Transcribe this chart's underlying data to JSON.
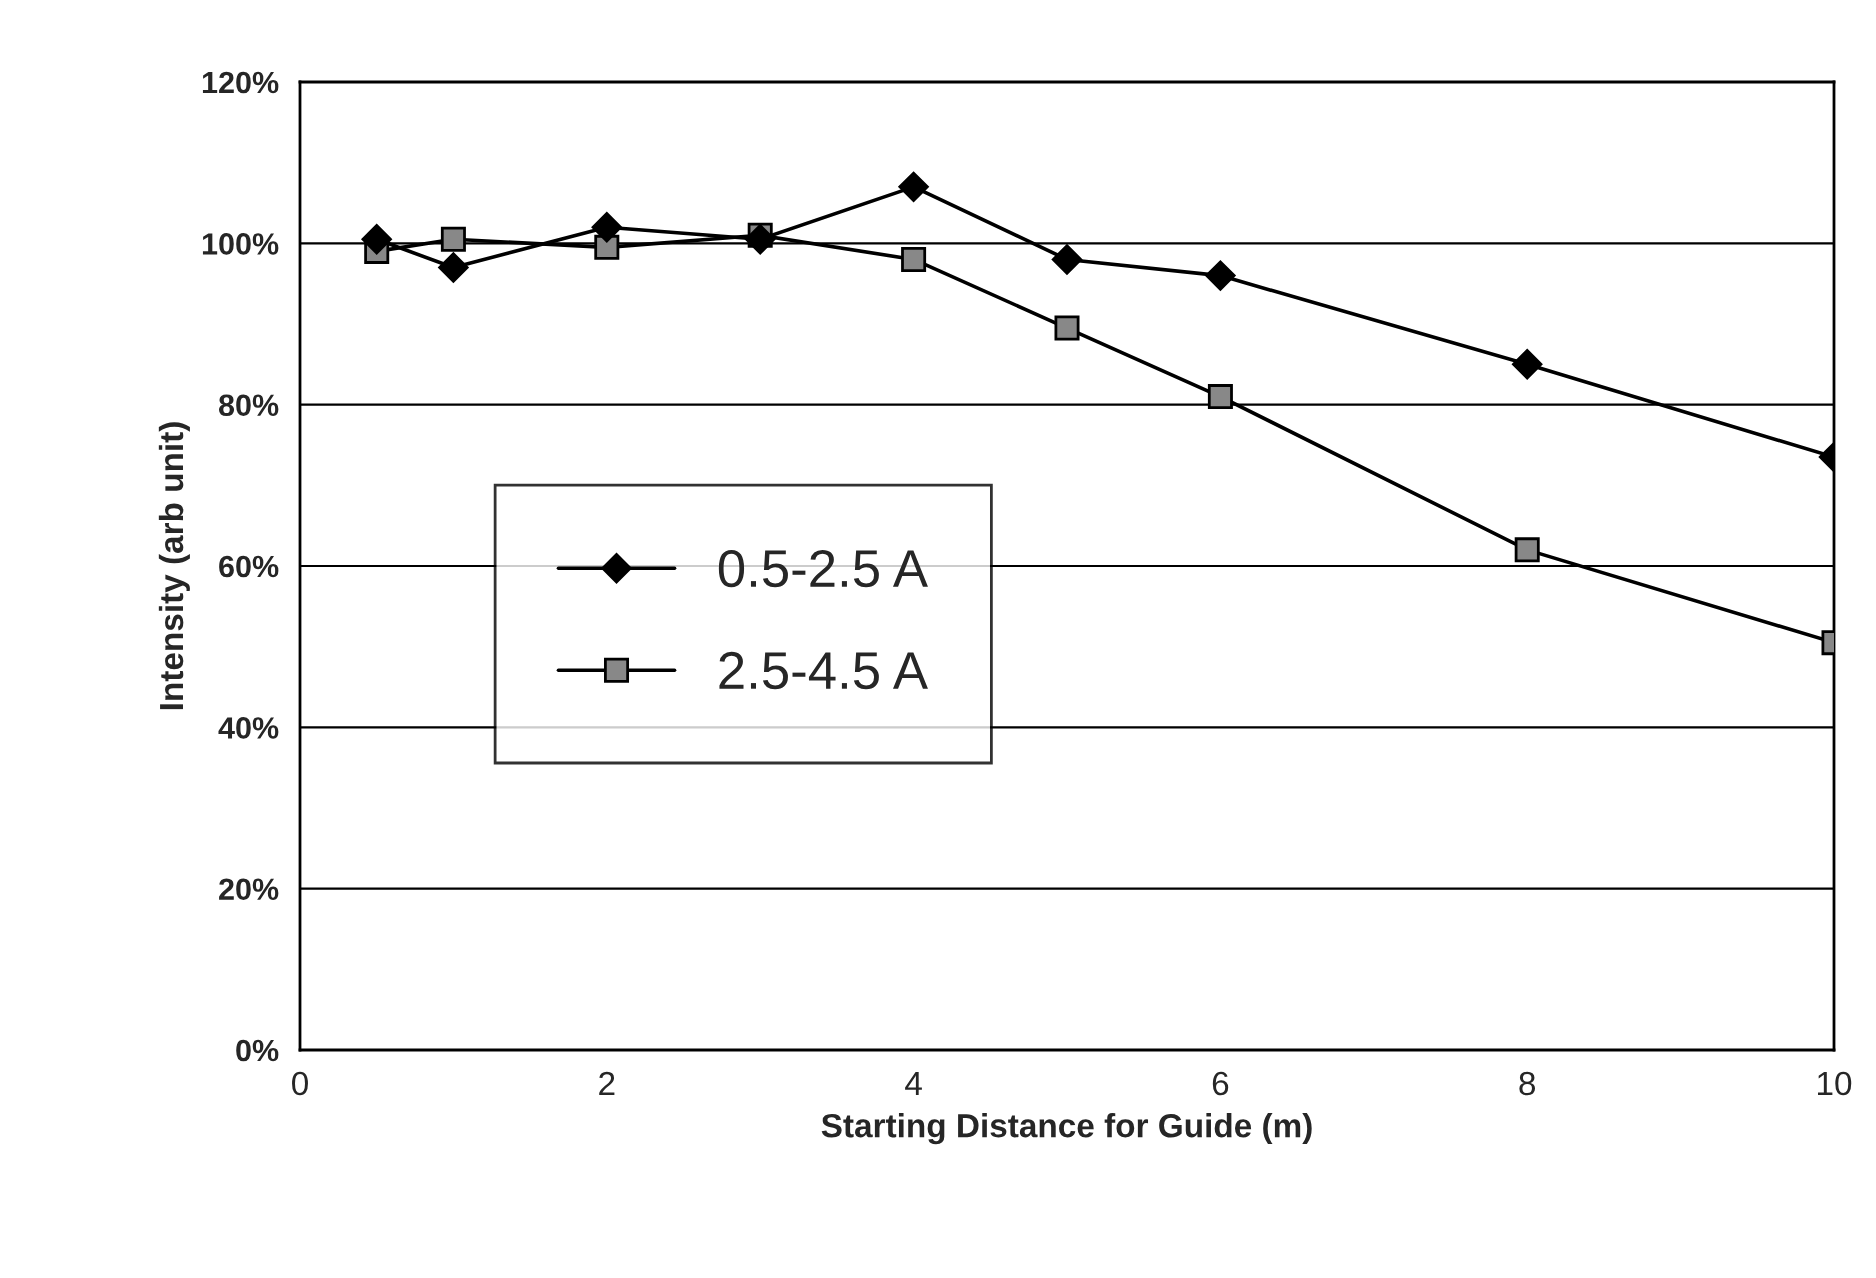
{
  "chart_data": {
    "type": "line",
    "xlabel": "Starting Distance for Guide (m)",
    "ylabel": "Intensity (arb unit)",
    "x": [
      0.5,
      1,
      2,
      3,
      4,
      5,
      6,
      8,
      10
    ],
    "series": [
      {
        "name": "0.5-2.5 A",
        "color": "#000000",
        "marker": "diamond",
        "values": [
          100.5,
          97,
          102,
          100.5,
          107,
          98,
          96,
          85,
          73.5
        ]
      },
      {
        "name": "2.5-4.5 A",
        "color": "#000000",
        "marker": "square",
        "values": [
          99,
          100.5,
          99.5,
          101,
          98,
          89.5,
          81,
          62,
          50.5
        ]
      }
    ],
    "xlim": [
      0,
      10
    ],
    "xticks": [
      0,
      2,
      4,
      6,
      8,
      10
    ],
    "ylim": [
      0,
      120
    ],
    "yticks": [
      {
        "value": 0,
        "label": "0%"
      },
      {
        "value": 20,
        "label": "20%"
      },
      {
        "value": 40,
        "label": "40%"
      },
      {
        "value": 60,
        "label": "60%"
      },
      {
        "value": 80,
        "label": "80%"
      },
      {
        "value": 100,
        "label": "100%"
      },
      {
        "value": 120,
        "label": "120%"
      }
    ],
    "grid": "y",
    "legend": "left",
    "line_style": "solid"
  }
}
